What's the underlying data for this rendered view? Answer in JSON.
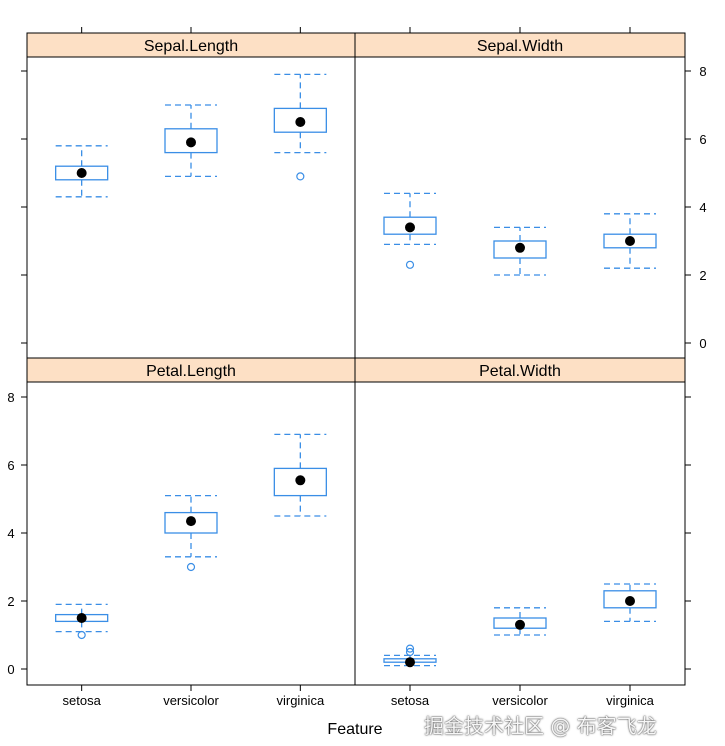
{
  "chart_data": {
    "type": "boxplot",
    "xlabel": "Feature",
    "ylabel": "",
    "categories": [
      "setosa",
      "versicolor",
      "virginica"
    ],
    "ylim": [
      -0.4,
      8.4
    ],
    "yticks": [
      0,
      2,
      4,
      6,
      8
    ],
    "colors": {
      "box": "#3a8ee6",
      "strip": "#fde0c5",
      "median_dot": "#000000"
    },
    "panels": [
      {
        "title": "Sepal.Length",
        "boxes": [
          {
            "category": "setosa",
            "whisker_low": 4.3,
            "q1": 4.8,
            "median": 5.0,
            "q3": 5.2,
            "whisker_high": 5.8,
            "outliers": []
          },
          {
            "category": "versicolor",
            "whisker_low": 4.9,
            "q1": 5.6,
            "median": 5.9,
            "q3": 6.3,
            "whisker_high": 7.0,
            "outliers": []
          },
          {
            "category": "virginica",
            "whisker_low": 5.6,
            "q1": 6.2,
            "median": 6.5,
            "q3": 6.9,
            "whisker_high": 7.9,
            "outliers": [
              4.9
            ]
          }
        ]
      },
      {
        "title": "Sepal.Width",
        "boxes": [
          {
            "category": "setosa",
            "whisker_low": 2.9,
            "q1": 3.2,
            "median": 3.4,
            "q3": 3.7,
            "whisker_high": 4.4,
            "outliers": [
              2.3
            ]
          },
          {
            "category": "versicolor",
            "whisker_low": 2.0,
            "q1": 2.5,
            "median": 2.8,
            "q3": 3.0,
            "whisker_high": 3.4,
            "outliers": []
          },
          {
            "category": "virginica",
            "whisker_low": 2.2,
            "q1": 2.8,
            "median": 3.0,
            "q3": 3.2,
            "whisker_high": 3.8,
            "outliers": []
          }
        ]
      },
      {
        "title": "Petal.Length",
        "boxes": [
          {
            "category": "setosa",
            "whisker_low": 1.1,
            "q1": 1.4,
            "median": 1.5,
            "q3": 1.6,
            "whisker_high": 1.9,
            "outliers": [
              1.0
            ]
          },
          {
            "category": "versicolor",
            "whisker_low": 3.3,
            "q1": 4.0,
            "median": 4.35,
            "q3": 4.6,
            "whisker_high": 5.1,
            "outliers": [
              3.0
            ]
          },
          {
            "category": "virginica",
            "whisker_low": 4.5,
            "q1": 5.1,
            "median": 5.55,
            "q3": 5.9,
            "whisker_high": 6.9,
            "outliers": []
          }
        ]
      },
      {
        "title": "Petal.Width",
        "boxes": [
          {
            "category": "setosa",
            "whisker_low": 0.1,
            "q1": 0.2,
            "median": 0.2,
            "q3": 0.3,
            "whisker_high": 0.4,
            "outliers": [
              0.5,
              0.6
            ]
          },
          {
            "category": "versicolor",
            "whisker_low": 1.0,
            "q1": 1.2,
            "median": 1.3,
            "q3": 1.5,
            "whisker_high": 1.8,
            "outliers": []
          },
          {
            "category": "virginica",
            "whisker_low": 1.4,
            "q1": 1.8,
            "median": 2.0,
            "q3": 2.3,
            "whisker_high": 2.5,
            "outliers": []
          }
        ]
      }
    ]
  },
  "watermark": "掘金技术社区 @ 布客飞龙"
}
